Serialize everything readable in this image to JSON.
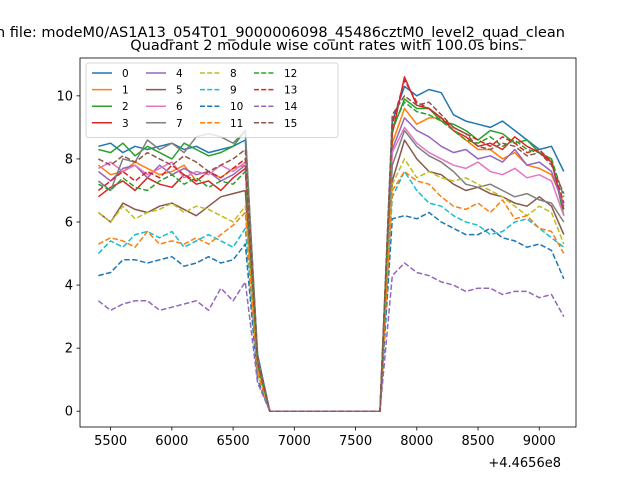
{
  "chart_data": {
    "type": "line",
    "suptitle": "n file: modeM0/AS1A13_054T01_9000006098_45486cztM0_level2_quad_clean",
    "title": "Quadrant 2 module wise count rates with 100.0s bins.",
    "xlabel": "",
    "ylabel": "",
    "x_offset_label": "+4.4656e8",
    "xlim": [
      5250,
      9300
    ],
    "ylim": [
      -0.5,
      11.2
    ],
    "xticks": [
      5500,
      6000,
      6500,
      7000,
      7500,
      8000,
      8500,
      9000
    ],
    "yticks": [
      0,
      2,
      4,
      6,
      8,
      10
    ],
    "grid": false,
    "legend": {
      "placement": "top-left",
      "columns": 4
    },
    "x": [
      5400,
      5500,
      5600,
      5700,
      5800,
      5900,
      6000,
      6100,
      6200,
      6300,
      6400,
      6500,
      6600,
      6700,
      6800,
      6900,
      7000,
      7100,
      7200,
      7300,
      7400,
      7500,
      7600,
      7700,
      7800,
      7900,
      8000,
      8100,
      8200,
      8300,
      8400,
      8500,
      8600,
      8700,
      8800,
      8900,
      9000,
      9100,
      9200
    ],
    "series": [
      {
        "name": "0",
        "color": "#1f77b4",
        "dash": "solid",
        "values": [
          8.4,
          8.5,
          8.2,
          8.4,
          8.3,
          8.4,
          8.5,
          8.3,
          8.4,
          8.2,
          8.3,
          8.4,
          8.6,
          1.8,
          0,
          0,
          0,
          0,
          0,
          0,
          0,
          0,
          0,
          0,
          9.2,
          10.3,
          10.0,
          10.2,
          10.1,
          9.4,
          9.2,
          9.1,
          9.0,
          9.2,
          8.9,
          8.6,
          8.3,
          8.4,
          7.6
        ]
      },
      {
        "name": "1",
        "color": "#ff7f0e",
        "dash": "solid",
        "values": [
          7.8,
          7.5,
          7.6,
          7.9,
          7.7,
          7.5,
          7.6,
          7.8,
          7.3,
          7.6,
          7.4,
          7.7,
          7.8,
          1.6,
          0,
          0,
          0,
          0,
          0,
          0,
          0,
          0,
          0,
          0,
          8.5,
          9.6,
          9.1,
          9.3,
          9.3,
          8.9,
          8.6,
          8.3,
          8.3,
          8.0,
          8.2,
          7.8,
          7.7,
          7.5,
          6.6
        ]
      },
      {
        "name": "2",
        "color": "#2ca02c",
        "dash": "solid",
        "values": [
          8.3,
          8.2,
          8.5,
          8.1,
          8.4,
          8.2,
          8.0,
          8.5,
          8.3,
          8.1,
          8.2,
          8.4,
          8.9,
          1.7,
          0,
          0,
          0,
          0,
          0,
          0,
          0,
          0,
          0,
          0,
          8.9,
          9.9,
          9.6,
          9.6,
          9.2,
          9.1,
          8.9,
          8.6,
          8.9,
          8.8,
          8.5,
          8.6,
          8.2,
          8.0,
          6.2
        ]
      },
      {
        "name": "3",
        "color": "#d62728",
        "dash": "solid",
        "values": [
          6.8,
          7.1,
          7.3,
          7.0,
          7.4,
          7.2,
          7.1,
          7.5,
          7.2,
          7.3,
          7.0,
          7.4,
          7.7,
          1.5,
          0,
          0,
          0,
          0,
          0,
          0,
          0,
          0,
          0,
          0,
          8.8,
          10.6,
          9.7,
          9.6,
          9.3,
          8.9,
          8.7,
          8.4,
          8.5,
          8.3,
          8.7,
          8.4,
          8.2,
          7.9,
          6.4
        ]
      },
      {
        "name": "4",
        "color": "#9467bd",
        "dash": "solid",
        "values": [
          7.6,
          7.3,
          7.7,
          7.8,
          7.4,
          7.8,
          7.5,
          7.7,
          7.5,
          7.6,
          7.3,
          7.5,
          7.8,
          1.5,
          0,
          0,
          0,
          0,
          0,
          0,
          0,
          0,
          0,
          0,
          8.3,
          9.3,
          8.9,
          8.7,
          8.4,
          8.2,
          8.3,
          8.0,
          8.1,
          7.9,
          8.3,
          7.8,
          7.9,
          7.6,
          6.5
        ]
      },
      {
        "name": "5",
        "color": "#8c564b",
        "dash": "solid",
        "values": [
          6.3,
          6.0,
          6.6,
          6.4,
          6.3,
          6.5,
          6.6,
          6.4,
          6.2,
          6.5,
          6.8,
          6.9,
          7.0,
          1.4,
          0,
          0,
          0,
          0,
          0,
          0,
          0,
          0,
          0,
          0,
          7.3,
          8.6,
          8.0,
          7.6,
          7.5,
          7.2,
          7.0,
          7.1,
          6.9,
          6.8,
          6.6,
          6.5,
          6.8,
          6.5,
          5.6
        ]
      },
      {
        "name": "6",
        "color": "#e377c2",
        "dash": "solid",
        "values": [
          7.7,
          7.9,
          7.6,
          7.8,
          7.5,
          7.7,
          7.9,
          7.4,
          7.6,
          7.5,
          7.8,
          7.6,
          7.9,
          1.6,
          0,
          0,
          0,
          0,
          0,
          0,
          0,
          0,
          0,
          0,
          8.2,
          9.0,
          8.5,
          8.2,
          8.0,
          7.8,
          7.7,
          7.9,
          7.6,
          7.5,
          7.7,
          7.4,
          7.5,
          7.3,
          6.2
        ]
      },
      {
        "name": "7",
        "color": "#7f7f7f",
        "dash": "solid",
        "values": [
          7.3,
          7.0,
          8.0,
          7.9,
          8.6,
          8.3,
          8.5,
          8.2,
          8.7,
          8.8,
          8.7,
          8.5,
          8.9,
          1.7,
          0,
          0,
          0,
          0,
          0,
          0,
          0,
          0,
          0,
          0,
          7.8,
          8.9,
          8.4,
          8.1,
          7.9,
          7.6,
          7.2,
          7.1,
          7.2,
          7.0,
          6.8,
          6.9,
          6.7,
          6.6,
          6.0
        ]
      },
      {
        "name": "8",
        "color": "#bcbd22",
        "dash": "dashed",
        "values": [
          6.3,
          6.0,
          6.5,
          6.1,
          6.3,
          6.4,
          6.6,
          6.3,
          6.5,
          6.4,
          6.2,
          6.0,
          6.5,
          1.3,
          0,
          0,
          0,
          0,
          0,
          0,
          0,
          0,
          0,
          0,
          7.2,
          8.0,
          7.4,
          7.6,
          7.4,
          7.3,
          7.4,
          7.2,
          7.0,
          6.8,
          6.5,
          6.2,
          6.5,
          6.3,
          5.3
        ]
      },
      {
        "name": "9",
        "color": "#17becf",
        "dash": "dashed",
        "values": [
          5.0,
          5.4,
          5.2,
          5.6,
          5.7,
          5.5,
          5.7,
          5.2,
          5.4,
          5.6,
          5.4,
          5.2,
          5.8,
          1.2,
          0,
          0,
          0,
          0,
          0,
          0,
          0,
          0,
          0,
          0,
          6.8,
          7.6,
          7.0,
          6.6,
          6.5,
          6.2,
          6.0,
          5.9,
          5.6,
          5.7,
          6.0,
          6.1,
          5.8,
          5.5,
          5.2
        ]
      },
      {
        "name": "10",
        "color": "#1f77b4",
        "dash": "dashed",
        "values": [
          4.3,
          4.4,
          4.8,
          4.8,
          4.7,
          4.8,
          4.9,
          4.6,
          4.7,
          4.9,
          4.7,
          4.8,
          5.3,
          1.0,
          0,
          0,
          0,
          0,
          0,
          0,
          0,
          0,
          0,
          0,
          6.1,
          6.2,
          6.1,
          6.3,
          6.0,
          5.8,
          5.6,
          5.6,
          5.8,
          5.5,
          5.4,
          5.2,
          5.3,
          5.1,
          4.2
        ]
      },
      {
        "name": "11",
        "color": "#ff7f0e",
        "dash": "dashed",
        "values": [
          5.3,
          5.5,
          5.4,
          5.2,
          5.7,
          5.3,
          5.4,
          5.3,
          5.5,
          5.3,
          5.6,
          5.9,
          6.3,
          1.2,
          0,
          0,
          0,
          0,
          0,
          0,
          0,
          0,
          0,
          0,
          7.0,
          7.6,
          7.3,
          7.2,
          6.8,
          6.5,
          6.4,
          6.6,
          6.3,
          6.7,
          6.1,
          6.2,
          5.8,
          5.7,
          5.0
        ]
      },
      {
        "name": "12",
        "color": "#2ca02c",
        "dash": "dashed",
        "values": [
          7.2,
          7.0,
          7.4,
          7.1,
          7.0,
          7.3,
          7.5,
          7.2,
          7.4,
          7.1,
          7.3,
          7.2,
          7.6,
          1.5,
          0,
          0,
          0,
          0,
          0,
          0,
          0,
          0,
          0,
          0,
          9.0,
          9.8,
          9.5,
          9.4,
          9.2,
          8.9,
          8.6,
          8.5,
          8.7,
          8.4,
          8.6,
          8.3,
          8.2,
          8.0,
          6.8
        ]
      },
      {
        "name": "13",
        "color": "#d62728",
        "dash": "dashed",
        "values": [
          7.0,
          7.3,
          7.6,
          7.3,
          7.6,
          7.4,
          7.8,
          7.5,
          7.3,
          7.6,
          7.4,
          7.7,
          8.0,
          1.6,
          0,
          0,
          0,
          0,
          0,
          0,
          0,
          0,
          0,
          0,
          9.1,
          10.5,
          9.8,
          9.6,
          9.3,
          9.0,
          8.8,
          8.6,
          8.4,
          8.7,
          8.5,
          8.2,
          8.3,
          7.9,
          6.6
        ]
      },
      {
        "name": "14",
        "color": "#9467bd",
        "dash": "dashed",
        "values": [
          3.5,
          3.2,
          3.4,
          3.5,
          3.5,
          3.2,
          3.3,
          3.4,
          3.5,
          3.2,
          3.9,
          3.5,
          4.1,
          0.9,
          0,
          0,
          0,
          0,
          0,
          0,
          0,
          0,
          0,
          0,
          4.3,
          4.7,
          4.4,
          4.3,
          4.1,
          4.0,
          3.8,
          3.9,
          3.9,
          3.7,
          3.8,
          3.8,
          3.6,
          3.7,
          3.0
        ]
      },
      {
        "name": "15",
        "color": "#8c564b",
        "dash": "dashed",
        "values": [
          8.0,
          7.8,
          8.1,
          7.9,
          8.2,
          8.0,
          7.8,
          8.1,
          7.9,
          7.6,
          7.8,
          8.0,
          8.3,
          1.7,
          0,
          0,
          0,
          0,
          0,
          0,
          0,
          0,
          0,
          0,
          9.4,
          10.0,
          9.7,
          9.8,
          9.4,
          9.0,
          8.8,
          8.4,
          8.3,
          8.5,
          8.4,
          8.1,
          8.2,
          7.8,
          6.9
        ]
      }
    ]
  }
}
